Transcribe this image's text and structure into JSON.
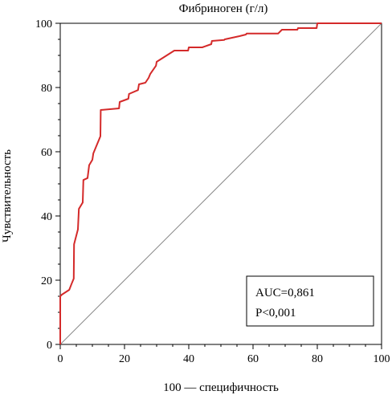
{
  "chart_data": {
    "type": "line",
    "title": "Фибриноген (г/л)",
    "xlabel": "100 — специфичность",
    "ylabel": "Чувствительность",
    "xlim": [
      0,
      100
    ],
    "ylim": [
      0,
      100
    ],
    "x_ticks": [
      0,
      20,
      40,
      60,
      80,
      100
    ],
    "y_ticks": [
      0,
      20,
      40,
      60,
      80,
      100
    ],
    "minor_ticks": true,
    "grid": false,
    "annotation": {
      "lines": [
        "AUC=0,861",
        "P<0,001"
      ],
      "placement": "bottom-right"
    },
    "colors": {
      "roc": "#d42a2a",
      "diagonal": "#888888",
      "axes": "#000000"
    },
    "series": [
      {
        "type": "reference",
        "x": [
          0,
          100
        ],
        "y": [
          0,
          100
        ]
      },
      {
        "type": "roc",
        "x": [
          0,
          0,
          0.5,
          2.8,
          3.5,
          4.2,
          4.3,
          5.5,
          5.8,
          7.0,
          7.2,
          8.5,
          9.0,
          10.0,
          10.3,
          12.5,
          12.6,
          18.3,
          18.5,
          21.2,
          21.4,
          24.2,
          24.5,
          26.5,
          27.5,
          28.0,
          29.8,
          30.0,
          35.5,
          39.8,
          40.0,
          44.2,
          47.0,
          47.2,
          51.0,
          51.2,
          55.8,
          57.8,
          58.0,
          67.8,
          69.0,
          73.8,
          74.0,
          79.8,
          80.0,
          100
        ],
        "y": [
          0,
          15.0,
          15.5,
          17.0,
          18.8,
          20.5,
          31.2,
          35.8,
          42.2,
          44.2,
          51.2,
          51.8,
          55.8,
          57.5,
          59.5,
          64.8,
          73.0,
          73.5,
          75.5,
          76.5,
          78.0,
          79.2,
          81.0,
          81.5,
          83.0,
          84.2,
          86.8,
          88.0,
          91.5,
          91.5,
          92.5,
          92.5,
          93.5,
          94.5,
          94.8,
          95.0,
          96.0,
          96.5,
          96.8,
          96.8,
          98.0,
          98.0,
          98.5,
          98.5,
          100,
          100
        ]
      }
    ]
  }
}
